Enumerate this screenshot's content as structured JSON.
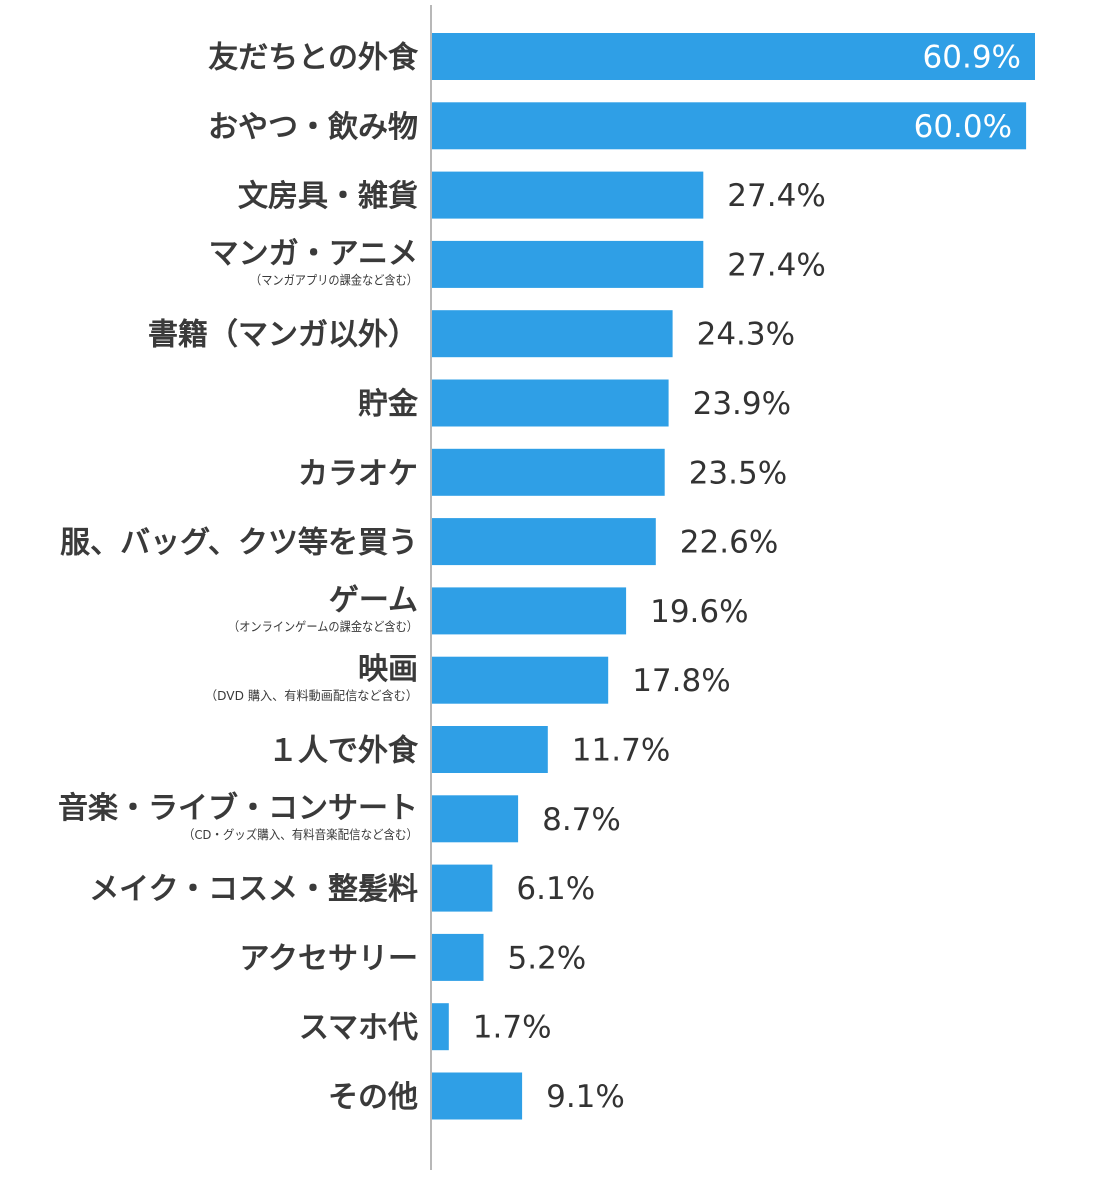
{
  "chart_data": {
    "type": "bar",
    "orientation": "horizontal",
    "categories": [
      "友だちとの外食",
      "おやつ・飲み物",
      "文房具・雑貨",
      "マンガ・アニメ",
      "書籍（マンガ以外）",
      "貯金",
      "カラオケ",
      "服、バッグ、クツ等を買う",
      "ゲーム",
      "映画",
      "１人で外食",
      "音楽・ライブ・コンサート",
      "メイク・コスメ・整髪料",
      "アクセサリー",
      "スマホ代",
      "その他"
    ],
    "subtitles": [
      "",
      "",
      "",
      "（マンガアプリの課金など含む）",
      "",
      "",
      "",
      "",
      "（オンラインゲームの課金など含む）",
      "（DVD 購入、有料動画配信など含む）",
      "",
      "（CD・グッズ購入、有料音楽配信など含む）",
      "",
      "",
      "",
      ""
    ],
    "values": [
      60.9,
      60.0,
      27.4,
      27.4,
      24.3,
      23.9,
      23.5,
      22.6,
      19.6,
      17.8,
      11.7,
      8.7,
      6.1,
      5.2,
      1.7,
      9.1
    ],
    "value_labels": [
      "60.9%",
      "60.0%",
      "27.4%",
      "27.4%",
      "24.3%",
      "23.9%",
      "23.5%",
      "22.6%",
      "19.6%",
      "17.8%",
      "11.7%",
      "8.7%",
      "6.1%",
      "5.2%",
      "1.7%",
      "9.1%"
    ],
    "inside_label_threshold": 50,
    "xlim": [
      0,
      61
    ],
    "title": "",
    "xlabel": "",
    "ylabel": "",
    "grid": false,
    "legend": "none",
    "bar_color": "#2f9fe6",
    "axis_color": "#b8b8b8"
  }
}
